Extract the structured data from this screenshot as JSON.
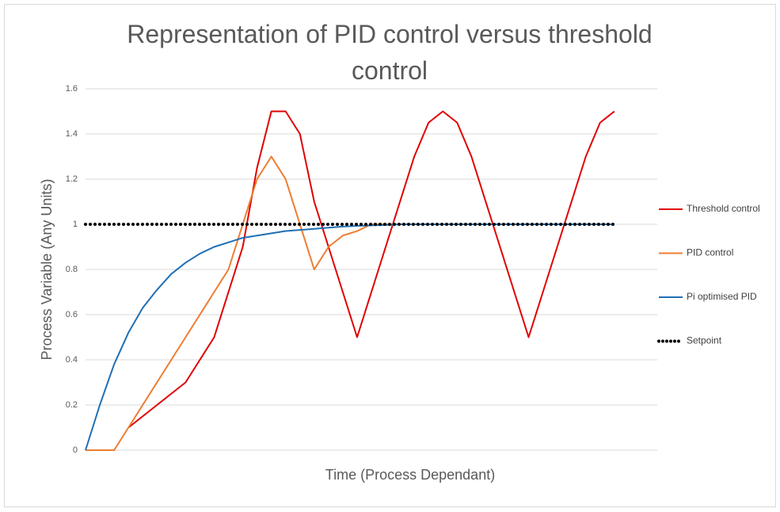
{
  "chart_data": {
    "type": "line",
    "title": "Representation of PID control versus threshold control",
    "ylabel": "Process Variable (Any Units)",
    "xlabel": "Time (Process Dependant)",
    "x": [
      0,
      1,
      2,
      3,
      4,
      5,
      6,
      7,
      8,
      9,
      10,
      11,
      12,
      13,
      14,
      15,
      16,
      17,
      18,
      19,
      20,
      21,
      22,
      23,
      24,
      25,
      26,
      27,
      28,
      29,
      30,
      31,
      32,
      33,
      34,
      35,
      36,
      37
    ],
    "xlim": [
      0,
      40
    ],
    "ylim": [
      0,
      1.6
    ],
    "yticks": [
      0,
      0.2,
      0.4,
      0.6,
      0.8,
      1,
      1.2,
      1.4,
      1.6
    ],
    "grid": true,
    "legend": "right",
    "series": [
      {
        "name": "Threshold control",
        "color": "#e00000",
        "values": [
          null,
          null,
          null,
          0.1,
          0.15,
          0.2,
          0.25,
          0.3,
          0.4,
          0.5,
          0.7,
          0.9,
          1.25,
          1.5,
          1.5,
          1.4,
          1.1,
          0.9,
          0.7,
          0.5,
          0.7,
          0.9,
          1.1,
          1.3,
          1.45,
          1.5,
          1.45,
          1.3,
          1.1,
          0.9,
          0.7,
          0.5,
          0.7,
          0.9,
          1.1,
          1.3,
          1.45,
          1.5
        ]
      },
      {
        "name": "PID control",
        "color": "#ed7d31",
        "values": [
          0,
          0,
          0,
          0.1,
          0.2,
          0.3,
          0.4,
          0.5,
          0.6,
          0.7,
          0.8,
          1,
          1.2,
          1.3,
          1.2,
          1,
          0.8,
          0.9,
          0.95,
          0.97,
          1,
          1,
          1,
          1,
          1,
          1,
          1,
          1,
          1,
          1,
          1,
          1,
          1,
          1,
          1,
          1,
          1,
          1
        ]
      },
      {
        "name": "Pi optimised PID",
        "color": "#1f6fb4",
        "values": [
          0,
          0.2,
          0.38,
          0.52,
          0.63,
          0.71,
          0.78,
          0.83,
          0.87,
          0.9,
          0.92,
          0.94,
          0.95,
          0.96,
          0.97,
          0.975,
          0.98,
          0.985,
          0.99,
          0.993,
          0.995,
          0.997,
          1,
          1,
          1,
          1,
          1,
          1,
          1,
          1,
          1,
          1,
          1,
          1,
          1,
          1,
          1,
          1
        ]
      },
      {
        "name": "Setpoint",
        "color": "#000000",
        "dotted": true,
        "values": [
          1,
          1,
          1,
          1,
          1,
          1,
          1,
          1,
          1,
          1,
          1,
          1,
          1,
          1,
          1,
          1,
          1,
          1,
          1,
          1,
          1,
          1,
          1,
          1,
          1,
          1,
          1,
          1,
          1,
          1,
          1,
          1,
          1,
          1,
          1,
          1,
          1,
          1
        ]
      }
    ]
  }
}
